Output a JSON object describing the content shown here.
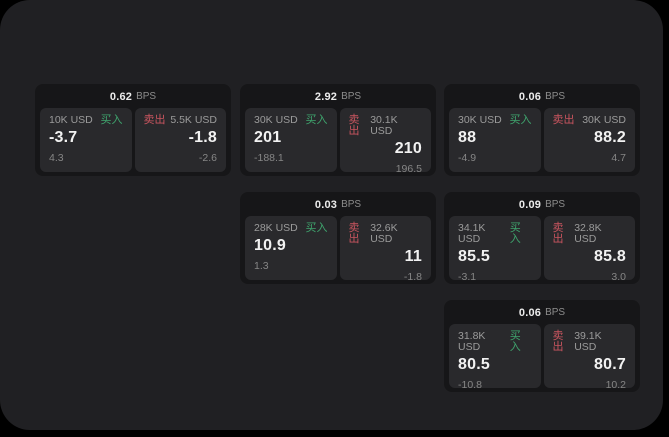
{
  "labels": {
    "unit": "BPS",
    "buy": "买入",
    "sell": "卖出"
  },
  "colors": {
    "background": "#000000",
    "surface": "#202023",
    "card": "#161618",
    "panel": "#29292c",
    "buy_accent": "#3fa56e",
    "sell_accent": "#c9555f",
    "text_primary": "#f2f2f2",
    "text_secondary": "#9b9b9b"
  },
  "cards": [
    {
      "bps": "0.62",
      "buy": {
        "amount": "10K USD",
        "value": "-3.7",
        "delta": "4.3"
      },
      "sell": {
        "amount": "5.5K USD",
        "value": "-1.8",
        "delta": "-2.6"
      }
    },
    {
      "bps": "2.92",
      "buy": {
        "amount": "30K USD",
        "value": "201",
        "delta": "-188.1"
      },
      "sell": {
        "amount": "30.1K USD",
        "value": "210",
        "delta": "196.5"
      }
    },
    {
      "bps": "0.06",
      "buy": {
        "amount": "30K USD",
        "value": "88",
        "delta": "-4.9"
      },
      "sell": {
        "amount": "30K USD",
        "value": "88.2",
        "delta": "4.7"
      }
    },
    {
      "bps": "0.03",
      "buy": {
        "amount": "28K USD",
        "value": "10.9",
        "delta": "1.3"
      },
      "sell": {
        "amount": "32.6K USD",
        "value": "11",
        "delta": "-1.8"
      }
    },
    {
      "bps": "0.09",
      "buy": {
        "amount": "34.1K USD",
        "value": "85.5",
        "delta": "-3.1"
      },
      "sell": {
        "amount": "32.8K USD",
        "value": "85.8",
        "delta": "3.0"
      }
    },
    {
      "bps": "0.06",
      "buy": {
        "amount": "31.8K USD",
        "value": "80.5",
        "delta": "-10.8"
      },
      "sell": {
        "amount": "39.1K USD",
        "value": "80.7",
        "delta": "10.2"
      }
    }
  ]
}
